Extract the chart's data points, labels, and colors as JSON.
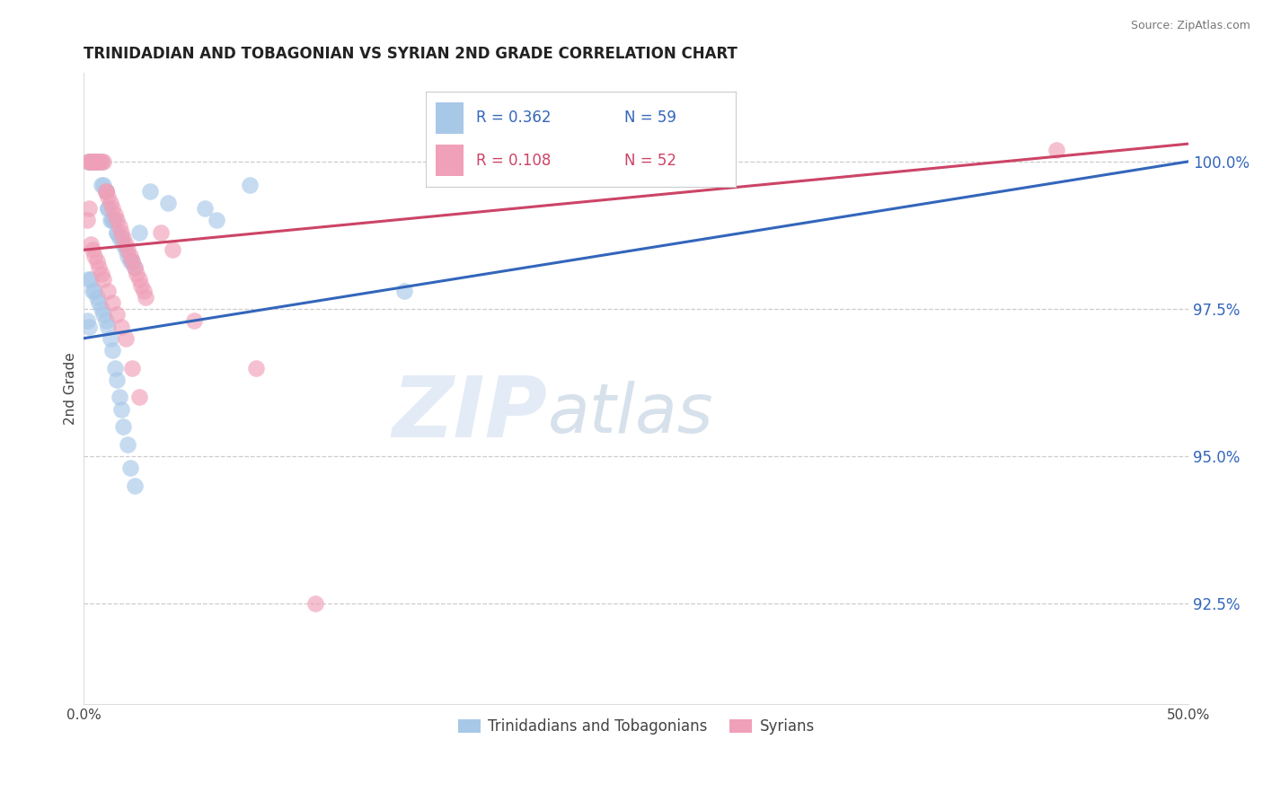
{
  "title": "TRINIDADIAN AND TOBAGONIAN VS SYRIAN 2ND GRADE CORRELATION CHART",
  "source": "Source: ZipAtlas.com",
  "ylabel": "2nd Grade",
  "y_ticks": [
    92.5,
    95.0,
    97.5,
    100.0
  ],
  "y_tick_labels": [
    "92.5%",
    "95.0%",
    "97.5%",
    "100.0%"
  ],
  "xmin": 0.0,
  "xmax": 50.0,
  "ymin": 90.8,
  "ymax": 101.5,
  "legend_labels": [
    "Trinidadians and Tobagonians",
    "Syrians"
  ],
  "legend_R_blue": "R = 0.362",
  "legend_N_blue": "N = 59",
  "legend_R_pink": "R = 0.108",
  "legend_N_pink": "N = 52",
  "blue_color": "#A8C8E8",
  "pink_color": "#F0A0B8",
  "blue_line_color": "#3366BB",
  "pink_line_color": "#CC4466",
  "watermark_zip": "ZIP",
  "watermark_atlas": "atlas",
  "blue_scatter_x": [
    0.2,
    0.3,
    0.3,
    0.4,
    0.5,
    0.5,
    0.6,
    0.6,
    0.7,
    0.8,
    0.8,
    0.9,
    1.0,
    1.0,
    1.1,
    1.1,
    1.2,
    1.3,
    1.3,
    1.4,
    1.5,
    1.5,
    1.6,
    1.7,
    1.8,
    1.9,
    2.0,
    2.1,
    2.2,
    2.3,
    0.2,
    0.3,
    0.4,
    0.5,
    0.6,
    0.7,
    0.8,
    0.9,
    1.0,
    1.1,
    1.2,
    1.3,
    1.4,
    1.5,
    1.6,
    1.7,
    1.8,
    2.0,
    2.1,
    2.3,
    0.15,
    0.25,
    2.5,
    3.0,
    3.8,
    5.5,
    6.0,
    7.5,
    14.5
  ],
  "blue_scatter_y": [
    100.0,
    100.0,
    100.0,
    100.0,
    100.0,
    100.0,
    100.0,
    100.0,
    100.0,
    100.0,
    99.6,
    99.6,
    99.5,
    99.5,
    99.2,
    99.2,
    99.0,
    99.0,
    99.0,
    99.0,
    98.8,
    98.8,
    98.7,
    98.7,
    98.6,
    98.5,
    98.4,
    98.3,
    98.3,
    98.2,
    98.0,
    98.0,
    97.8,
    97.8,
    97.7,
    97.6,
    97.5,
    97.4,
    97.3,
    97.2,
    97.0,
    96.8,
    96.5,
    96.3,
    96.0,
    95.8,
    95.5,
    95.2,
    94.8,
    94.5,
    97.3,
    97.2,
    98.8,
    99.5,
    99.3,
    99.2,
    99.0,
    99.6,
    97.8
  ],
  "pink_scatter_x": [
    0.2,
    0.3,
    0.3,
    0.4,
    0.5,
    0.5,
    0.6,
    0.7,
    0.8,
    0.9,
    1.0,
    1.0,
    1.1,
    1.2,
    1.3,
    1.4,
    1.5,
    1.6,
    1.7,
    1.8,
    1.9,
    2.0,
    2.1,
    2.2,
    2.3,
    2.4,
    2.5,
    2.6,
    2.7,
    2.8,
    0.3,
    0.4,
    0.5,
    0.6,
    0.7,
    0.8,
    0.9,
    1.1,
    1.3,
    1.5,
    1.7,
    1.9,
    2.2,
    2.5,
    0.15,
    0.25,
    3.5,
    4.0,
    5.0,
    7.8,
    10.5,
    44.0
  ],
  "pink_scatter_y": [
    100.0,
    100.0,
    100.0,
    100.0,
    100.0,
    100.0,
    100.0,
    100.0,
    100.0,
    100.0,
    99.5,
    99.5,
    99.4,
    99.3,
    99.2,
    99.1,
    99.0,
    98.9,
    98.8,
    98.7,
    98.6,
    98.5,
    98.4,
    98.3,
    98.2,
    98.1,
    98.0,
    97.9,
    97.8,
    97.7,
    98.6,
    98.5,
    98.4,
    98.3,
    98.2,
    98.1,
    98.0,
    97.8,
    97.6,
    97.4,
    97.2,
    97.0,
    96.5,
    96.0,
    99.0,
    99.2,
    98.8,
    98.5,
    97.3,
    96.5,
    92.5,
    100.2
  ]
}
